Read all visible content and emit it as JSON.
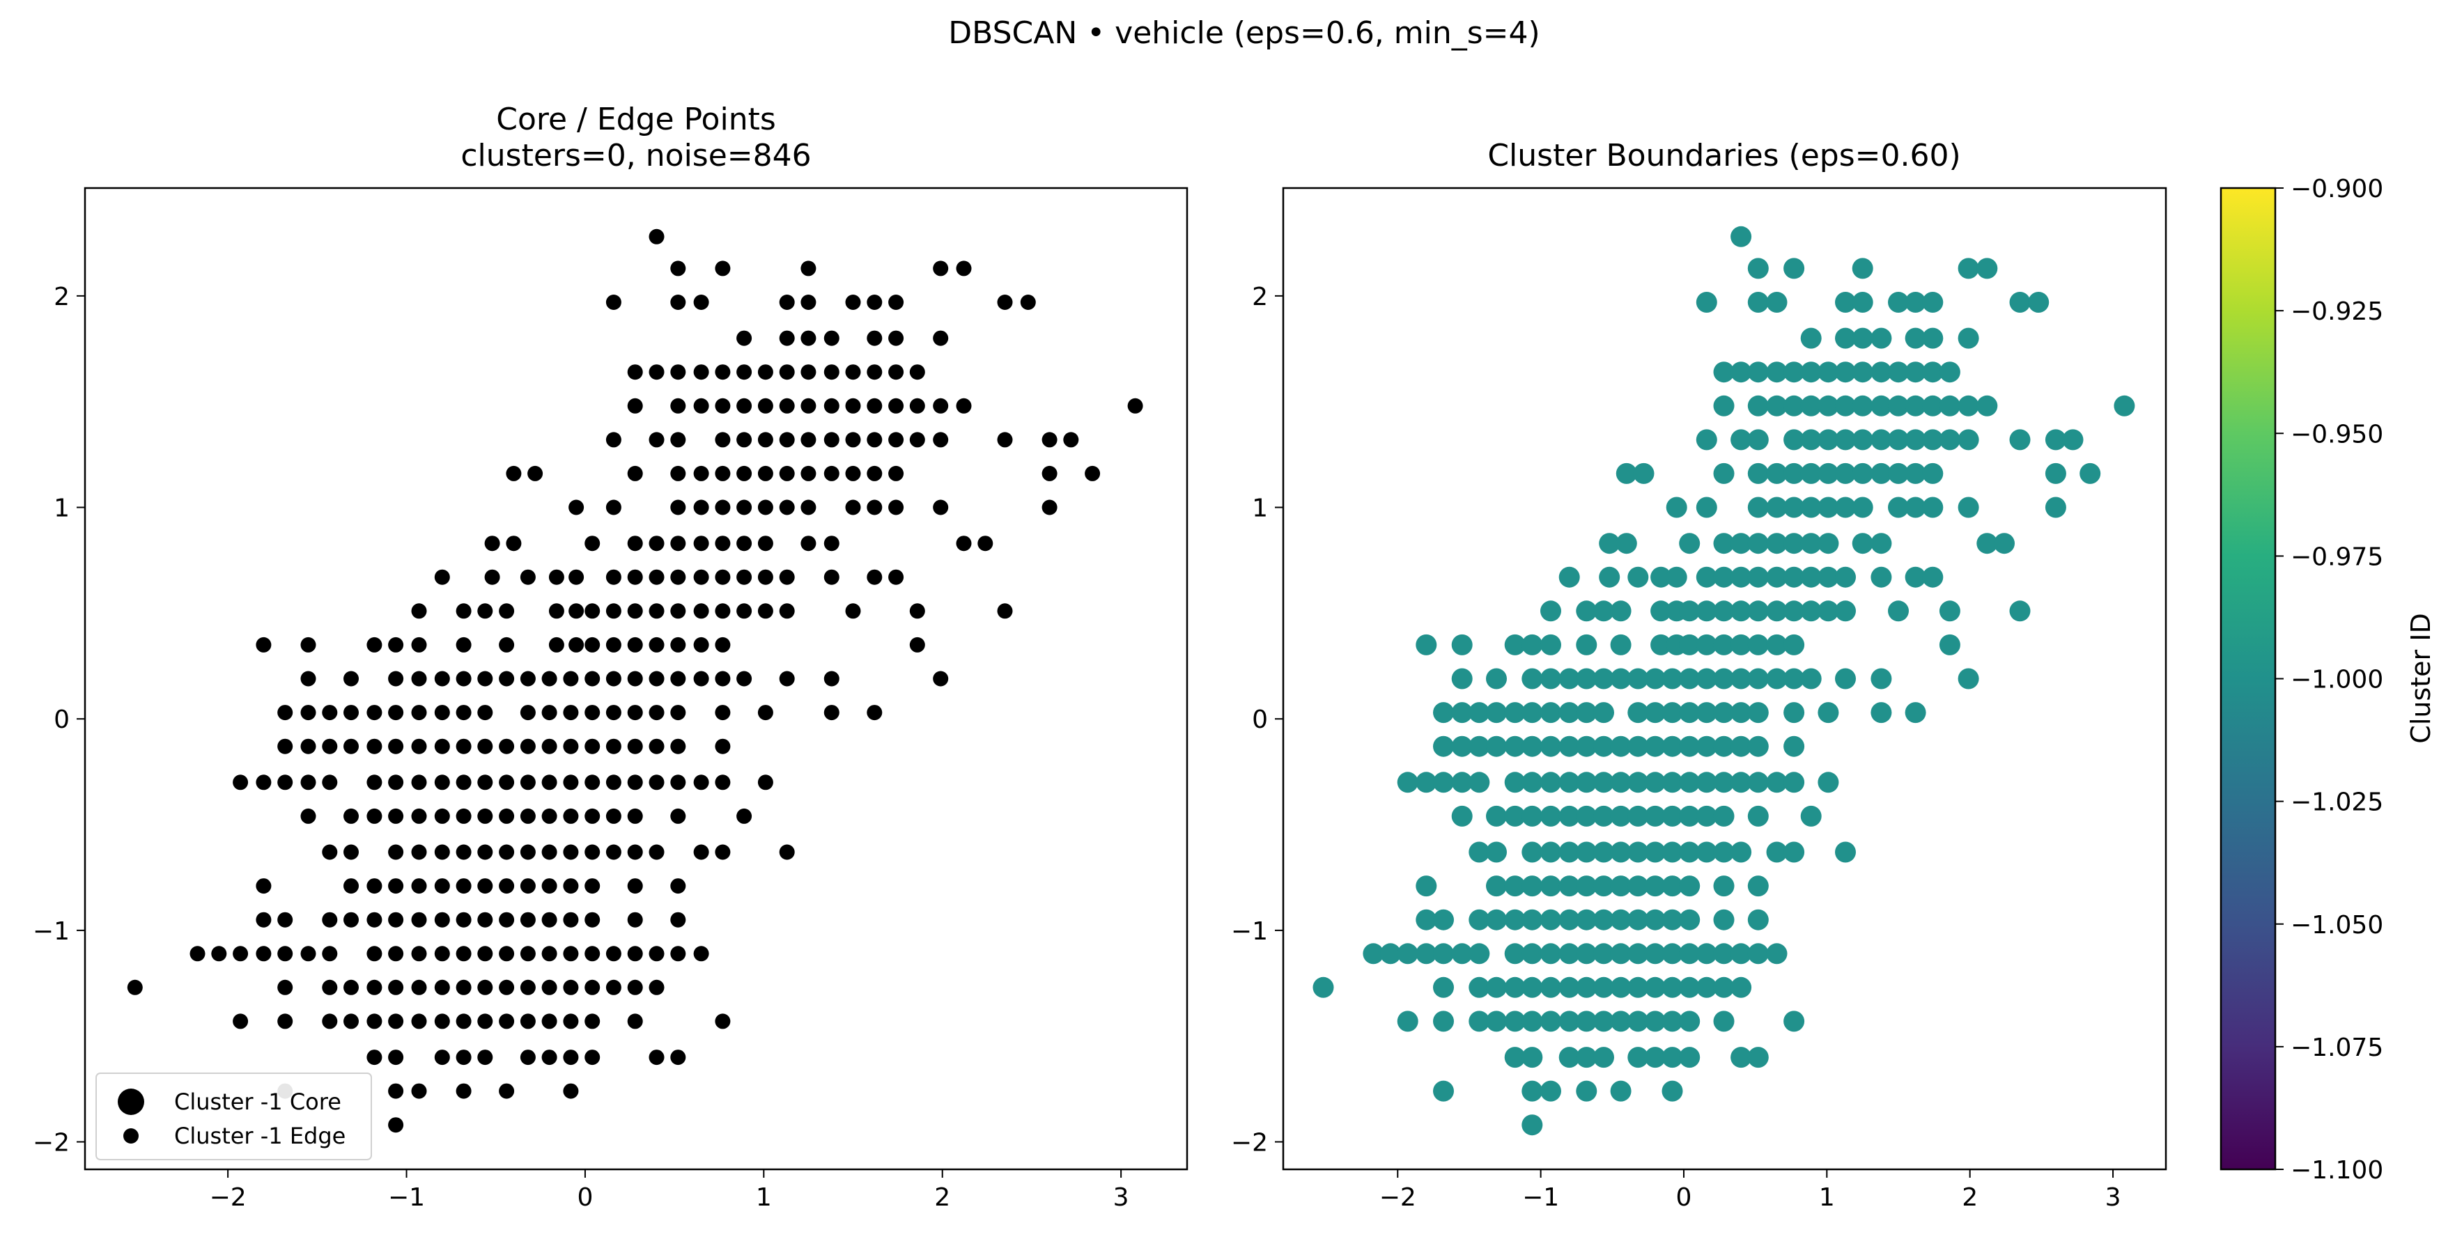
{
  "figure": {
    "suptitle": "DBSCAN • vehicle  (eps=0.6, min_s=4)"
  },
  "chart_data": [
    {
      "type": "scatter",
      "title": "Core / Edge Points\nclusters=0, noise=846",
      "title_lines": [
        "Core / Edge Points",
        "clusters=0, noise=846"
      ],
      "xlabel": "",
      "ylabel": "",
      "xlim": [
        -2.8,
        3.37
      ],
      "ylim": [
        -2.13,
        2.51
      ],
      "xticks": [
        -2,
        -1,
        0,
        1,
        2,
        3
      ],
      "yticks": [
        -2,
        -1,
        0,
        1,
        2
      ],
      "grid": false,
      "legend": {
        "placement": "lower-left",
        "entries": [
          {
            "label": "Cluster -1 Core",
            "marker": "large-dot"
          },
          {
            "label": "Cluster -1 Edge",
            "marker": "small-dot"
          }
        ]
      },
      "point_color": "#000000",
      "series": [
        {
          "name": "Cluster -1 Edge",
          "points": "shared"
        }
      ]
    },
    {
      "type": "scatter",
      "title": "Cluster Boundaries  (eps=0.60)",
      "xlabel": "",
      "ylabel": "",
      "xlim": [
        -2.8,
        3.37
      ],
      "ylim": [
        -2.13,
        2.51
      ],
      "xticks": [
        -2,
        -1,
        0,
        1,
        2,
        3
      ],
      "yticks": [
        -2,
        -1,
        0,
        1,
        2
      ],
      "grid": false,
      "point_color": "#21918c",
      "colorbar": {
        "label": "Cluster ID",
        "colormap": "viridis",
        "range": [
          -1.1,
          -0.9
        ],
        "ticks": [
          "−0.900",
          "−0.925",
          "−0.950",
          "−0.975",
          "−1.000",
          "−1.025",
          "−1.050",
          "−1.075",
          "−1.100"
        ],
        "tick_values": [
          -0.9,
          -0.925,
          -0.95,
          -0.975,
          -1.0,
          -1.025,
          -1.05,
          -1.075,
          -1.1
        ]
      }
    }
  ],
  "points": [
    [
      0.4,
      2.28
    ],
    [
      0.52,
      2.13
    ],
    [
      0.77,
      2.13
    ],
    [
      1.25,
      2.13
    ],
    [
      1.99,
      2.13
    ],
    [
      2.12,
      2.13
    ],
    [
      0.16,
      1.97
    ],
    [
      0.52,
      1.97
    ],
    [
      0.65,
      1.97
    ],
    [
      1.13,
      1.97
    ],
    [
      1.25,
      1.97
    ],
    [
      1.5,
      1.97
    ],
    [
      1.62,
      1.97
    ],
    [
      1.74,
      1.97
    ],
    [
      2.35,
      1.97
    ],
    [
      2.48,
      1.97
    ],
    [
      0.89,
      1.8
    ],
    [
      1.13,
      1.8
    ],
    [
      1.25,
      1.8
    ],
    [
      1.38,
      1.8
    ],
    [
      1.62,
      1.8
    ],
    [
      1.74,
      1.8
    ],
    [
      1.99,
      1.8
    ],
    [
      0.28,
      1.64
    ],
    [
      0.4,
      1.64
    ],
    [
      0.52,
      1.64
    ],
    [
      0.65,
      1.64
    ],
    [
      0.77,
      1.64
    ],
    [
      0.89,
      1.64
    ],
    [
      1.01,
      1.64
    ],
    [
      1.13,
      1.64
    ],
    [
      1.25,
      1.64
    ],
    [
      1.38,
      1.64
    ],
    [
      1.5,
      1.64
    ],
    [
      1.62,
      1.64
    ],
    [
      1.74,
      1.64
    ],
    [
      1.86,
      1.64
    ],
    [
      0.28,
      1.48
    ],
    [
      0.52,
      1.48
    ],
    [
      0.65,
      1.48
    ],
    [
      0.77,
      1.48
    ],
    [
      0.89,
      1.48
    ],
    [
      1.01,
      1.48
    ],
    [
      1.13,
      1.48
    ],
    [
      1.25,
      1.48
    ],
    [
      1.38,
      1.48
    ],
    [
      1.5,
      1.48
    ],
    [
      1.62,
      1.48
    ],
    [
      1.74,
      1.48
    ],
    [
      1.86,
      1.48
    ],
    [
      1.99,
      1.48
    ],
    [
      2.12,
      1.48
    ],
    [
      3.08,
      1.48
    ],
    [
      0.16,
      1.32
    ],
    [
      0.4,
      1.32
    ],
    [
      0.52,
      1.32
    ],
    [
      0.77,
      1.32
    ],
    [
      0.89,
      1.32
    ],
    [
      1.01,
      1.32
    ],
    [
      1.13,
      1.32
    ],
    [
      1.25,
      1.32
    ],
    [
      1.38,
      1.32
    ],
    [
      1.5,
      1.32
    ],
    [
      1.62,
      1.32
    ],
    [
      1.74,
      1.32
    ],
    [
      1.86,
      1.32
    ],
    [
      1.99,
      1.32
    ],
    [
      2.35,
      1.32
    ],
    [
      2.6,
      1.32
    ],
    [
      2.72,
      1.32
    ],
    [
      -0.4,
      1.16
    ],
    [
      -0.28,
      1.16
    ],
    [
      0.28,
      1.16
    ],
    [
      0.52,
      1.16
    ],
    [
      0.65,
      1.16
    ],
    [
      0.77,
      1.16
    ],
    [
      0.89,
      1.16
    ],
    [
      1.01,
      1.16
    ],
    [
      1.13,
      1.16
    ],
    [
      1.25,
      1.16
    ],
    [
      1.38,
      1.16
    ],
    [
      1.5,
      1.16
    ],
    [
      1.62,
      1.16
    ],
    [
      1.74,
      1.16
    ],
    [
      2.6,
      1.16
    ],
    [
      2.84,
      1.16
    ],
    [
      -0.05,
      1.0
    ],
    [
      0.16,
      1.0
    ],
    [
      0.52,
      1.0
    ],
    [
      0.65,
      1.0
    ],
    [
      0.77,
      1.0
    ],
    [
      0.89,
      1.0
    ],
    [
      1.01,
      1.0
    ],
    [
      1.13,
      1.0
    ],
    [
      1.25,
      1.0
    ],
    [
      1.5,
      1.0
    ],
    [
      1.62,
      1.0
    ],
    [
      1.74,
      1.0
    ],
    [
      1.99,
      1.0
    ],
    [
      2.6,
      1.0
    ],
    [
      -0.52,
      0.83
    ],
    [
      -0.4,
      0.83
    ],
    [
      0.04,
      0.83
    ],
    [
      0.28,
      0.83
    ],
    [
      0.4,
      0.83
    ],
    [
      0.52,
      0.83
    ],
    [
      0.65,
      0.83
    ],
    [
      0.77,
      0.83
    ],
    [
      0.89,
      0.83
    ],
    [
      1.01,
      0.83
    ],
    [
      1.25,
      0.83
    ],
    [
      1.38,
      0.83
    ],
    [
      2.12,
      0.83
    ],
    [
      2.24,
      0.83
    ],
    [
      -0.8,
      0.67
    ],
    [
      -0.52,
      0.67
    ],
    [
      -0.32,
      0.67
    ],
    [
      -0.16,
      0.67
    ],
    [
      -0.05,
      0.67
    ],
    [
      0.16,
      0.67
    ],
    [
      0.28,
      0.67
    ],
    [
      0.4,
      0.67
    ],
    [
      0.52,
      0.67
    ],
    [
      0.65,
      0.67
    ],
    [
      0.77,
      0.67
    ],
    [
      0.89,
      0.67
    ],
    [
      1.01,
      0.67
    ],
    [
      1.13,
      0.67
    ],
    [
      1.38,
      0.67
    ],
    [
      1.62,
      0.67
    ],
    [
      1.74,
      0.67
    ],
    [
      -0.93,
      0.51
    ],
    [
      -0.68,
      0.51
    ],
    [
      -0.56,
      0.51
    ],
    [
      -0.44,
      0.51
    ],
    [
      -0.16,
      0.51
    ],
    [
      -0.05,
      0.51
    ],
    [
      0.04,
      0.51
    ],
    [
      0.16,
      0.51
    ],
    [
      0.28,
      0.51
    ],
    [
      0.4,
      0.51
    ],
    [
      0.52,
      0.51
    ],
    [
      0.65,
      0.51
    ],
    [
      0.77,
      0.51
    ],
    [
      0.89,
      0.51
    ],
    [
      1.01,
      0.51
    ],
    [
      1.13,
      0.51
    ],
    [
      1.5,
      0.51
    ],
    [
      1.86,
      0.51
    ],
    [
      2.35,
      0.51
    ],
    [
      -1.8,
      0.35
    ],
    [
      -1.55,
      0.35
    ],
    [
      -1.18,
      0.35
    ],
    [
      -1.06,
      0.35
    ],
    [
      -0.93,
      0.35
    ],
    [
      -0.68,
      0.35
    ],
    [
      -0.44,
      0.35
    ],
    [
      -0.16,
      0.35
    ],
    [
      -0.05,
      0.35
    ],
    [
      0.04,
      0.35
    ],
    [
      0.16,
      0.35
    ],
    [
      0.28,
      0.35
    ],
    [
      0.4,
      0.35
    ],
    [
      0.52,
      0.35
    ],
    [
      0.65,
      0.35
    ],
    [
      0.77,
      0.35
    ],
    [
      1.86,
      0.35
    ],
    [
      -1.55,
      0.19
    ],
    [
      -1.31,
      0.19
    ],
    [
      -1.06,
      0.19
    ],
    [
      -0.93,
      0.19
    ],
    [
      -0.8,
      0.19
    ],
    [
      -0.68,
      0.19
    ],
    [
      -0.56,
      0.19
    ],
    [
      -0.44,
      0.19
    ],
    [
      -0.32,
      0.19
    ],
    [
      -0.2,
      0.19
    ],
    [
      -0.08,
      0.19
    ],
    [
      0.04,
      0.19
    ],
    [
      0.16,
      0.19
    ],
    [
      0.28,
      0.19
    ],
    [
      0.4,
      0.19
    ],
    [
      0.52,
      0.19
    ],
    [
      0.65,
      0.19
    ],
    [
      0.77,
      0.19
    ],
    [
      0.89,
      0.19
    ],
    [
      1.13,
      0.19
    ],
    [
      1.38,
      0.19
    ],
    [
      1.99,
      0.19
    ],
    [
      -1.68,
      0.03
    ],
    [
      -1.55,
      0.03
    ],
    [
      -1.43,
      0.03
    ],
    [
      -1.31,
      0.03
    ],
    [
      -1.18,
      0.03
    ],
    [
      -1.06,
      0.03
    ],
    [
      -0.93,
      0.03
    ],
    [
      -0.8,
      0.03
    ],
    [
      -0.68,
      0.03
    ],
    [
      -0.56,
      0.03
    ],
    [
      -0.32,
      0.03
    ],
    [
      -0.2,
      0.03
    ],
    [
      -0.08,
      0.03
    ],
    [
      0.04,
      0.03
    ],
    [
      0.16,
      0.03
    ],
    [
      0.28,
      0.03
    ],
    [
      0.4,
      0.03
    ],
    [
      0.52,
      0.03
    ],
    [
      0.77,
      0.03
    ],
    [
      1.01,
      0.03
    ],
    [
      1.38,
      0.03
    ],
    [
      1.62,
      0.03
    ],
    [
      -1.68,
      -0.13
    ],
    [
      -1.55,
      -0.13
    ],
    [
      -1.43,
      -0.13
    ],
    [
      -1.31,
      -0.13
    ],
    [
      -1.18,
      -0.13
    ],
    [
      -1.06,
      -0.13
    ],
    [
      -0.93,
      -0.13
    ],
    [
      -0.8,
      -0.13
    ],
    [
      -0.68,
      -0.13
    ],
    [
      -0.56,
      -0.13
    ],
    [
      -0.44,
      -0.13
    ],
    [
      -0.32,
      -0.13
    ],
    [
      -0.2,
      -0.13
    ],
    [
      -0.08,
      -0.13
    ],
    [
      0.04,
      -0.13
    ],
    [
      0.16,
      -0.13
    ],
    [
      0.28,
      -0.13
    ],
    [
      0.4,
      -0.13
    ],
    [
      0.52,
      -0.13
    ],
    [
      0.77,
      -0.13
    ],
    [
      -1.93,
      -0.3
    ],
    [
      -1.8,
      -0.3
    ],
    [
      -1.68,
      -0.3
    ],
    [
      -1.55,
      -0.3
    ],
    [
      -1.43,
      -0.3
    ],
    [
      -1.18,
      -0.3
    ],
    [
      -1.06,
      -0.3
    ],
    [
      -0.93,
      -0.3
    ],
    [
      -0.8,
      -0.3
    ],
    [
      -0.68,
      -0.3
    ],
    [
      -0.56,
      -0.3
    ],
    [
      -0.44,
      -0.3
    ],
    [
      -0.32,
      -0.3
    ],
    [
      -0.2,
      -0.3
    ],
    [
      -0.08,
      -0.3
    ],
    [
      0.04,
      -0.3
    ],
    [
      0.16,
      -0.3
    ],
    [
      0.28,
      -0.3
    ],
    [
      0.4,
      -0.3
    ],
    [
      0.52,
      -0.3
    ],
    [
      0.65,
      -0.3
    ],
    [
      0.77,
      -0.3
    ],
    [
      1.01,
      -0.3
    ],
    [
      -1.55,
      -0.46
    ],
    [
      -1.31,
      -0.46
    ],
    [
      -1.18,
      -0.46
    ],
    [
      -1.06,
      -0.46
    ],
    [
      -0.93,
      -0.46
    ],
    [
      -0.8,
      -0.46
    ],
    [
      -0.68,
      -0.46
    ],
    [
      -0.56,
      -0.46
    ],
    [
      -0.44,
      -0.46
    ],
    [
      -0.32,
      -0.46
    ],
    [
      -0.2,
      -0.46
    ],
    [
      -0.08,
      -0.46
    ],
    [
      0.04,
      -0.46
    ],
    [
      0.16,
      -0.46
    ],
    [
      0.28,
      -0.46
    ],
    [
      0.52,
      -0.46
    ],
    [
      0.89,
      -0.46
    ],
    [
      -1.43,
      -0.63
    ],
    [
      -1.31,
      -0.63
    ],
    [
      -1.06,
      -0.63
    ],
    [
      -0.93,
      -0.63
    ],
    [
      -0.8,
      -0.63
    ],
    [
      -0.68,
      -0.63
    ],
    [
      -0.56,
      -0.63
    ],
    [
      -0.44,
      -0.63
    ],
    [
      -0.32,
      -0.63
    ],
    [
      -0.2,
      -0.63
    ],
    [
      -0.08,
      -0.63
    ],
    [
      0.04,
      -0.63
    ],
    [
      0.16,
      -0.63
    ],
    [
      0.28,
      -0.63
    ],
    [
      0.4,
      -0.63
    ],
    [
      0.65,
      -0.63
    ],
    [
      0.77,
      -0.63
    ],
    [
      1.13,
      -0.63
    ],
    [
      -1.8,
      -0.79
    ],
    [
      -1.31,
      -0.79
    ],
    [
      -1.18,
      -0.79
    ],
    [
      -1.06,
      -0.79
    ],
    [
      -0.93,
      -0.79
    ],
    [
      -0.8,
      -0.79
    ],
    [
      -0.68,
      -0.79
    ],
    [
      -0.56,
      -0.79
    ],
    [
      -0.44,
      -0.79
    ],
    [
      -0.32,
      -0.79
    ],
    [
      -0.2,
      -0.79
    ],
    [
      -0.08,
      -0.79
    ],
    [
      0.04,
      -0.79
    ],
    [
      0.28,
      -0.79
    ],
    [
      0.52,
      -0.79
    ],
    [
      -1.8,
      -0.95
    ],
    [
      -1.68,
      -0.95
    ],
    [
      -1.43,
      -0.95
    ],
    [
      -1.31,
      -0.95
    ],
    [
      -1.18,
      -0.95
    ],
    [
      -1.06,
      -0.95
    ],
    [
      -0.93,
      -0.95
    ],
    [
      -0.8,
      -0.95
    ],
    [
      -0.68,
      -0.95
    ],
    [
      -0.56,
      -0.95
    ],
    [
      -0.44,
      -0.95
    ],
    [
      -0.32,
      -0.95
    ],
    [
      -0.2,
      -0.95
    ],
    [
      -0.08,
      -0.95
    ],
    [
      0.04,
      -0.95
    ],
    [
      0.28,
      -0.95
    ],
    [
      0.52,
      -0.95
    ],
    [
      -2.17,
      -1.11
    ],
    [
      -2.05,
      -1.11
    ],
    [
      -1.93,
      -1.11
    ],
    [
      -1.8,
      -1.11
    ],
    [
      -1.68,
      -1.11
    ],
    [
      -1.55,
      -1.11
    ],
    [
      -1.43,
      -1.11
    ],
    [
      -1.18,
      -1.11
    ],
    [
      -1.06,
      -1.11
    ],
    [
      -0.93,
      -1.11
    ],
    [
      -0.8,
      -1.11
    ],
    [
      -0.68,
      -1.11
    ],
    [
      -0.56,
      -1.11
    ],
    [
      -0.44,
      -1.11
    ],
    [
      -0.32,
      -1.11
    ],
    [
      -0.2,
      -1.11
    ],
    [
      -0.08,
      -1.11
    ],
    [
      0.04,
      -1.11
    ],
    [
      0.16,
      -1.11
    ],
    [
      0.28,
      -1.11
    ],
    [
      0.4,
      -1.11
    ],
    [
      0.52,
      -1.11
    ],
    [
      0.65,
      -1.11
    ],
    [
      -2.52,
      -1.27
    ],
    [
      -1.68,
      -1.27
    ],
    [
      -1.43,
      -1.27
    ],
    [
      -1.31,
      -1.27
    ],
    [
      -1.18,
      -1.27
    ],
    [
      -1.06,
      -1.27
    ],
    [
      -0.93,
      -1.27
    ],
    [
      -0.8,
      -1.27
    ],
    [
      -0.68,
      -1.27
    ],
    [
      -0.56,
      -1.27
    ],
    [
      -0.44,
      -1.27
    ],
    [
      -0.32,
      -1.27
    ],
    [
      -0.2,
      -1.27
    ],
    [
      -0.08,
      -1.27
    ],
    [
      0.04,
      -1.27
    ],
    [
      0.16,
      -1.27
    ],
    [
      0.28,
      -1.27
    ],
    [
      0.4,
      -1.27
    ],
    [
      -1.93,
      -1.43
    ],
    [
      -1.68,
      -1.43
    ],
    [
      -1.43,
      -1.43
    ],
    [
      -1.31,
      -1.43
    ],
    [
      -1.18,
      -1.43
    ],
    [
      -1.06,
      -1.43
    ],
    [
      -0.93,
      -1.43
    ],
    [
      -0.8,
      -1.43
    ],
    [
      -0.68,
      -1.43
    ],
    [
      -0.56,
      -1.43
    ],
    [
      -0.44,
      -1.43
    ],
    [
      -0.32,
      -1.43
    ],
    [
      -0.2,
      -1.43
    ],
    [
      -0.08,
      -1.43
    ],
    [
      0.04,
      -1.43
    ],
    [
      0.28,
      -1.43
    ],
    [
      0.77,
      -1.43
    ],
    [
      -1.18,
      -1.6
    ],
    [
      -1.06,
      -1.6
    ],
    [
      -0.8,
      -1.6
    ],
    [
      -0.68,
      -1.6
    ],
    [
      -0.56,
      -1.6
    ],
    [
      -0.32,
      -1.6
    ],
    [
      -0.2,
      -1.6
    ],
    [
      -0.08,
      -1.6
    ],
    [
      0.04,
      -1.6
    ],
    [
      0.4,
      -1.6
    ],
    [
      0.52,
      -1.6
    ],
    [
      -1.68,
      -1.76
    ],
    [
      -1.06,
      -1.76
    ],
    [
      -0.93,
      -1.76
    ],
    [
      -0.68,
      -1.76
    ],
    [
      -0.44,
      -1.76
    ],
    [
      -0.08,
      -1.76
    ],
    [
      -1.06,
      -1.92
    ]
  ]
}
